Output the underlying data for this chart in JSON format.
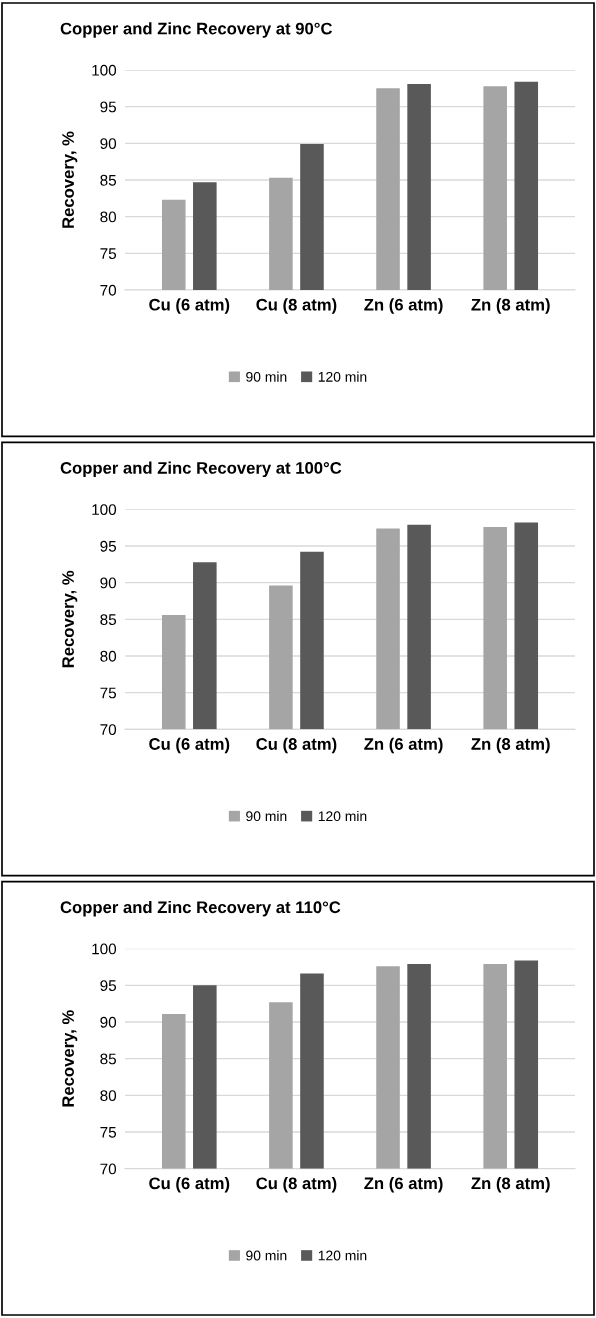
{
  "chart_data": [
    {
      "type": "bar",
      "title": "Copper and Zinc Recovery at 90°C",
      "ylabel": "Recovery, %",
      "categories": [
        "Cu (6 atm)",
        "Cu (8 atm)",
        "Zn (6 atm)",
        "Zn (8 atm)"
      ],
      "series": [
        {
          "name": "90 min",
          "color": "#a5a5a5",
          "values": [
            82.3,
            85.3,
            97.5,
            97.8
          ]
        },
        {
          "name": "120 min",
          "color": "#595959",
          "values": [
            84.7,
            89.9,
            98.1,
            98.4
          ]
        }
      ],
      "ylim": [
        70,
        100
      ],
      "yticks": [
        70,
        75,
        80,
        85,
        90,
        95,
        100
      ],
      "grid": "y",
      "legend": "bottom"
    },
    {
      "type": "bar",
      "title": "Copper and Zinc Recovery at 100°C",
      "ylabel": "Recovery, %",
      "categories": [
        "Cu (6 atm)",
        "Cu (8 atm)",
        "Zn (6 atm)",
        "Zn (8 atm)"
      ],
      "series": [
        {
          "name": "90 min",
          "color": "#a5a5a5",
          "values": [
            85.6,
            89.6,
            97.4,
            97.6
          ]
        },
        {
          "name": "120 min",
          "color": "#595959",
          "values": [
            92.8,
            94.2,
            97.9,
            98.2
          ]
        }
      ],
      "ylim": [
        70,
        100
      ],
      "yticks": [
        70,
        75,
        80,
        85,
        90,
        95,
        100
      ],
      "grid": "y",
      "legend": "bottom"
    },
    {
      "type": "bar",
      "title": "Copper and Zinc Recovery at 110°C",
      "ylabel": "Recovery, %",
      "categories": [
        "Cu (6 atm)",
        "Cu (8 atm)",
        "Zn (6 atm)",
        "Zn (8 atm)"
      ],
      "series": [
        {
          "name": "90 min",
          "color": "#a5a5a5",
          "values": [
            91.1,
            92.7,
            97.6,
            97.9
          ]
        },
        {
          "name": "120 min",
          "color": "#595959",
          "values": [
            95.0,
            96.6,
            97.9,
            98.4
          ]
        }
      ],
      "ylim": [
        70,
        100
      ],
      "yticks": [
        70,
        75,
        80,
        85,
        90,
        95,
        100
      ],
      "grid": "y",
      "legend": "bottom"
    }
  ]
}
